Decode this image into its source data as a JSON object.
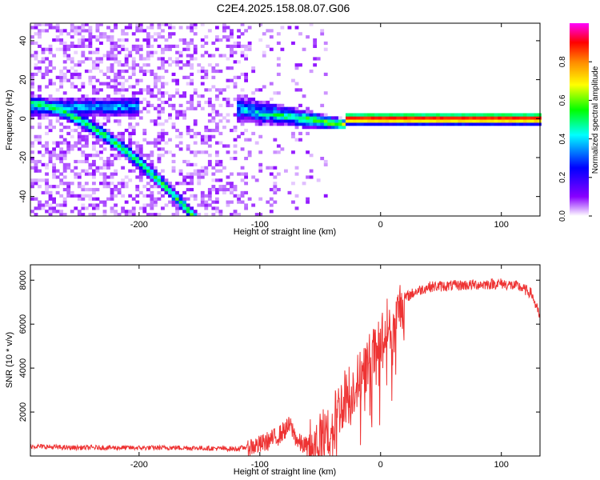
{
  "title": "C2E4.2025.158.08.07.G06",
  "colors": {
    "snr_line": "#ee3333",
    "axis": "#000000",
    "background": "#ffffff"
  },
  "chart_data": [
    {
      "type": "heatmap",
      "xlabel": "Height of straight line (km)",
      "ylabel": "Frequency (Hz)",
      "xlim": [
        -290,
        132
      ],
      "ylim": [
        -50,
        49
      ],
      "xticks": [
        -200,
        -100,
        0,
        100
      ],
      "xtick_labels": [
        "-200",
        "-100",
        "0",
        "100"
      ],
      "yticks": [
        -40,
        -20,
        0,
        20,
        40
      ],
      "ytick_labels": [
        "-40",
        "-20",
        "0",
        "20",
        "40"
      ],
      "grid": false,
      "features": {
        "diagonal_track": {
          "from": [
            -290,
            8
          ],
          "to": [
            -155,
            -50
          ]
        },
        "horizontal_band": {
          "x_range": [
            -120,
            -30
          ],
          "freq_at_start": 5,
          "freq_at_end": -3
        },
        "strong_line": {
          "x_range": [
            -30,
            132
          ],
          "freq": 0
        }
      },
      "colorbar": {
        "label": "Normalized spectral amplitude",
        "range": [
          0,
          1
        ],
        "ticks": [
          0.0,
          0.2,
          0.4,
          0.6,
          0.8
        ],
        "tick_labels": [
          "0.0",
          "0.2",
          "0.4",
          "0.6",
          "0.8"
        ],
        "colormap": [
          "#ffffff",
          "#8800ff",
          "#0000ff",
          "#00ffff",
          "#00ff00",
          "#ffff00",
          "#ff8800",
          "#ff0000",
          "#ff00ff"
        ]
      }
    },
    {
      "type": "line",
      "xlabel": "Height of straight line (km)",
      "ylabel": "SNR (10 * v/v)",
      "xlim": [
        -290,
        132
      ],
      "ylim": [
        0,
        8700
      ],
      "xticks": [
        -200,
        -100,
        0,
        100
      ],
      "xtick_labels": [
        "-200",
        "-100",
        "0",
        "100"
      ],
      "yticks": [
        2000,
        4000,
        6000,
        8000
      ],
      "ytick_labels": [
        "2000",
        "4000",
        "6000",
        "8000"
      ],
      "grid": false,
      "series": [
        {
          "x": [
            -290,
            -260,
            -230,
            -200,
            -170,
            -140,
            -120,
            -100,
            -85,
            -75,
            -68,
            -60,
            -50,
            -40,
            -30,
            -20,
            -10,
            0,
            5,
            10,
            15,
            20,
            30,
            40,
            60,
            80,
            100,
            115,
            125,
            132
          ],
          "y": [
            450,
            380,
            380,
            370,
            380,
            350,
            320,
            500,
            900,
            1400,
            600,
            400,
            700,
            1500,
            2700,
            3300,
            4300,
            5000,
            6100,
            5200,
            6700,
            7200,
            7500,
            7700,
            7750,
            7800,
            7850,
            7700,
            7400,
            6300
          ]
        }
      ]
    }
  ]
}
